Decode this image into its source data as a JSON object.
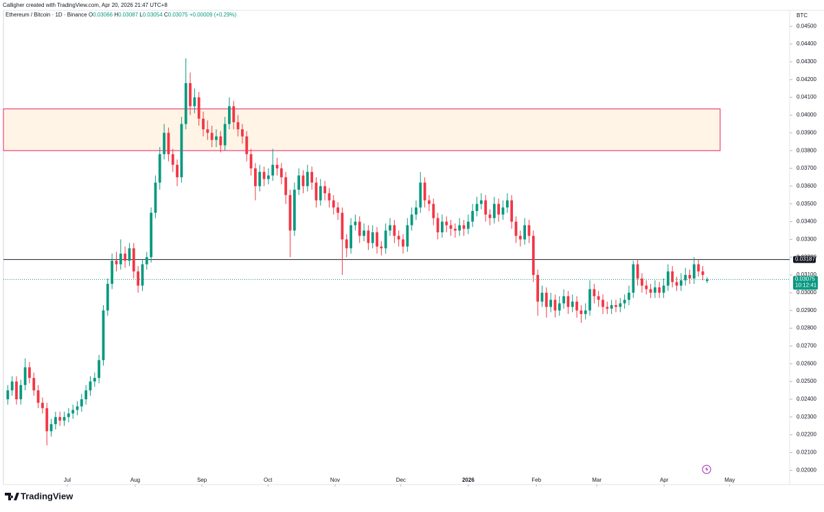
{
  "header": "Calligher created with TradingView.com, Apr 20, 2026 21:47 UTC+8",
  "chart_data": {
    "type": "candlestick",
    "symbol": "Ethereum / Bitcoin · 1D · Binance",
    "ohlc_labels": [
      "O",
      "H",
      "L",
      "C"
    ],
    "change": "+0.00009 (+0.29%)",
    "currency": "BTC",
    "up_color": "#089981",
    "down_color": "#f23645",
    "grid": false,
    "xlim": [
      -1,
      180
    ],
    "ylim": [
      0.0192,
      0.0459
    ],
    "xticks": [
      {
        "value": 13.7,
        "label": "Jul"
      },
      {
        "value": 29.35,
        "label": "Aug"
      },
      {
        "value": 44.7,
        "label": "Sep"
      },
      {
        "value": 59.9,
        "label": "Oct"
      },
      {
        "value": 75.35,
        "label": "Nov"
      },
      {
        "value": 90.5,
        "label": "Dec"
      },
      {
        "value": 106,
        "label": "2026"
      },
      {
        "value": 121.7,
        "label": "Feb"
      },
      {
        "value": 135.6,
        "label": "Mar"
      },
      {
        "value": 151.1,
        "label": "Apr"
      },
      {
        "value": 166.2,
        "label": "May"
      }
    ],
    "yticks": [
      {
        "value": 0.02,
        "label": "0.02000"
      },
      {
        "value": 0.021,
        "label": "0.02100"
      },
      {
        "value": 0.022,
        "label": "0.02200"
      },
      {
        "value": 0.023,
        "label": "0.02300"
      },
      {
        "value": 0.024,
        "label": "0.02400"
      },
      {
        "value": 0.025,
        "label": "0.02500"
      },
      {
        "value": 0.026,
        "label": "0.02600"
      },
      {
        "value": 0.027,
        "label": "0.02700"
      },
      {
        "value": 0.028,
        "label": "0.02800"
      },
      {
        "value": 0.029,
        "label": "0.02900"
      },
      {
        "value": 0.03,
        "label": "0.03000"
      },
      {
        "value": 0.031,
        "label": "0.03100"
      },
      {
        "value": 0.032,
        "label": "0.03200"
      },
      {
        "value": 0.033,
        "label": "0.03300"
      },
      {
        "value": 0.034,
        "label": "0.03400"
      },
      {
        "value": 0.035,
        "label": "0.03500"
      },
      {
        "value": 0.036,
        "label": "0.03600"
      },
      {
        "value": 0.037,
        "label": "0.03700"
      },
      {
        "value": 0.038,
        "label": "0.03800"
      },
      {
        "value": 0.039,
        "label": "0.03900"
      },
      {
        "value": 0.04,
        "label": "0.04000"
      },
      {
        "value": 0.041,
        "label": "0.04100"
      },
      {
        "value": 0.042,
        "label": "0.04200"
      },
      {
        "value": 0.043,
        "label": "0.04300"
      },
      {
        "value": 0.044,
        "label": "0.04400"
      },
      {
        "value": 0.045,
        "label": "0.04500"
      }
    ],
    "zone": {
      "x": [
        -1,
        164
      ],
      "y": [
        0.038,
        0.04035
      ],
      "color": "#e91e63"
    },
    "hline": {
      "value": 0.03187,
      "color": "#131722"
    },
    "countdown": "10:12:41",
    "candles": [
      [
        0.024,
        0.0248,
        0.0237,
        0.0245
      ],
      [
        0.0245,
        0.0253,
        0.0242,
        0.025
      ],
      [
        0.025,
        0.0253,
        0.0237,
        0.024
      ],
      [
        0.024,
        0.0251,
        0.0237,
        0.0248
      ],
      [
        0.0248,
        0.0263,
        0.0245,
        0.0258
      ],
      [
        0.0258,
        0.0261,
        0.0249,
        0.0252
      ],
      [
        0.0252,
        0.0255,
        0.0242,
        0.0245
      ],
      [
        0.0245,
        0.0248,
        0.0235,
        0.0238
      ],
      [
        0.0238,
        0.0241,
        0.0232,
        0.0235
      ],
      [
        0.0235,
        0.0238,
        0.0214,
        0.0222
      ],
      [
        0.0222,
        0.0229,
        0.0219,
        0.0226
      ],
      [
        0.0226,
        0.0233,
        0.0223,
        0.023
      ],
      [
        0.023,
        0.0233,
        0.0225,
        0.0228
      ],
      [
        0.0228,
        0.0233,
        0.0225,
        0.023
      ],
      [
        0.023,
        0.0235,
        0.0227,
        0.0232
      ],
      [
        0.0232,
        0.0237,
        0.0229,
        0.0234
      ],
      [
        0.0234,
        0.0239,
        0.0231,
        0.0236
      ],
      [
        0.0236,
        0.0243,
        0.0233,
        0.024
      ],
      [
        0.024,
        0.0248,
        0.0237,
        0.0245
      ],
      [
        0.0245,
        0.0253,
        0.0242,
        0.025
      ],
      [
        0.025,
        0.0255,
        0.0247,
        0.0252
      ],
      [
        0.0252,
        0.0265,
        0.0249,
        0.0262
      ],
      [
        0.0262,
        0.0293,
        0.0259,
        0.029
      ],
      [
        0.029,
        0.0308,
        0.0287,
        0.0305
      ],
      [
        0.0305,
        0.0322,
        0.0302,
        0.0318
      ],
      [
        0.0318,
        0.0323,
        0.0312,
        0.0316
      ],
      [
        0.0316,
        0.033,
        0.0313,
        0.0322
      ],
      [
        0.0322,
        0.0326,
        0.0314,
        0.0318
      ],
      [
        0.0318,
        0.0328,
        0.0315,
        0.0325
      ],
      [
        0.0325,
        0.0328,
        0.0308,
        0.0312
      ],
      [
        0.0312,
        0.0315,
        0.03,
        0.0304
      ],
      [
        0.0304,
        0.0319,
        0.0301,
        0.0316
      ],
      [
        0.0316,
        0.0323,
        0.0313,
        0.032
      ],
      [
        0.032,
        0.0348,
        0.0317,
        0.0345
      ],
      [
        0.0345,
        0.0366,
        0.0342,
        0.0362
      ],
      [
        0.0362,
        0.0382,
        0.0358,
        0.0378
      ],
      [
        0.0378,
        0.0395,
        0.0375,
        0.039
      ],
      [
        0.039,
        0.0393,
        0.0374,
        0.0378
      ],
      [
        0.0378,
        0.0381,
        0.0368,
        0.0372
      ],
      [
        0.0372,
        0.0375,
        0.036,
        0.0365
      ],
      [
        0.0365,
        0.0399,
        0.0362,
        0.0395
      ],
      [
        0.0395,
        0.0432,
        0.0392,
        0.0418
      ],
      [
        0.0418,
        0.0424,
        0.04,
        0.0405
      ],
      [
        0.0405,
        0.0415,
        0.0401,
        0.041
      ],
      [
        0.041,
        0.0413,
        0.0394,
        0.0398
      ],
      [
        0.0398,
        0.0402,
        0.0388,
        0.0392
      ],
      [
        0.0392,
        0.0397,
        0.0386,
        0.039
      ],
      [
        0.039,
        0.0394,
        0.0382,
        0.0386
      ],
      [
        0.0386,
        0.0392,
        0.0382,
        0.0388
      ],
      [
        0.0388,
        0.0391,
        0.0379,
        0.0383
      ],
      [
        0.0383,
        0.0399,
        0.038,
        0.0395
      ],
      [
        0.0395,
        0.041,
        0.0392,
        0.0405
      ],
      [
        0.0405,
        0.0408,
        0.0392,
        0.0396
      ],
      [
        0.0396,
        0.04,
        0.0388,
        0.0392
      ],
      [
        0.0392,
        0.0395,
        0.0384,
        0.0388
      ],
      [
        0.0388,
        0.0391,
        0.0374,
        0.0378
      ],
      [
        0.0378,
        0.0381,
        0.0366,
        0.037
      ],
      [
        0.037,
        0.0373,
        0.0352,
        0.036
      ],
      [
        0.036,
        0.0372,
        0.0357,
        0.0368
      ],
      [
        0.0368,
        0.0371,
        0.036,
        0.0364
      ],
      [
        0.0364,
        0.037,
        0.0361,
        0.0366
      ],
      [
        0.0366,
        0.0381,
        0.0363,
        0.0372
      ],
      [
        0.0372,
        0.0376,
        0.0366,
        0.037
      ],
      [
        0.037,
        0.0373,
        0.0361,
        0.0365
      ],
      [
        0.0365,
        0.0368,
        0.035,
        0.0355
      ],
      [
        0.0355,
        0.0358,
        0.032,
        0.0335
      ],
      [
        0.0335,
        0.0362,
        0.0332,
        0.0358
      ],
      [
        0.0358,
        0.037,
        0.0355,
        0.0366
      ],
      [
        0.0366,
        0.0369,
        0.0356,
        0.036
      ],
      [
        0.036,
        0.0372,
        0.0357,
        0.0368
      ],
      [
        0.0368,
        0.0371,
        0.0358,
        0.0362
      ],
      [
        0.0362,
        0.0365,
        0.0348,
        0.0352
      ],
      [
        0.0352,
        0.0364,
        0.0349,
        0.036
      ],
      [
        0.036,
        0.0363,
        0.0352,
        0.0356
      ],
      [
        0.0356,
        0.0359,
        0.0348,
        0.0352
      ],
      [
        0.0352,
        0.0355,
        0.0344,
        0.0348
      ],
      [
        0.0348,
        0.0351,
        0.0341,
        0.0345
      ],
      [
        0.0345,
        0.0348,
        0.031,
        0.033
      ],
      [
        0.033,
        0.0333,
        0.032,
        0.0325
      ],
      [
        0.0325,
        0.0342,
        0.0322,
        0.0338
      ],
      [
        0.0338,
        0.0344,
        0.0335,
        0.034
      ],
      [
        0.034,
        0.0343,
        0.0328,
        0.0332
      ],
      [
        0.0332,
        0.0339,
        0.0329,
        0.0335
      ],
      [
        0.0335,
        0.0338,
        0.0324,
        0.0328
      ],
      [
        0.0328,
        0.0338,
        0.0325,
        0.0334
      ],
      [
        0.0334,
        0.0337,
        0.0322,
        0.0326
      ],
      [
        0.0326,
        0.0329,
        0.0321,
        0.0325
      ],
      [
        0.0325,
        0.0339,
        0.0322,
        0.0335
      ],
      [
        0.0335,
        0.0342,
        0.0332,
        0.0338
      ],
      [
        0.0338,
        0.0341,
        0.0328,
        0.0332
      ],
      [
        0.0332,
        0.0335,
        0.0326,
        0.033
      ],
      [
        0.033,
        0.0333,
        0.0322,
        0.0326
      ],
      [
        0.0326,
        0.0342,
        0.0323,
        0.0338
      ],
      [
        0.0338,
        0.0348,
        0.0335,
        0.0344
      ],
      [
        0.0344,
        0.0352,
        0.0341,
        0.0348
      ],
      [
        0.0348,
        0.0368,
        0.0345,
        0.0362
      ],
      [
        0.0362,
        0.0365,
        0.0348,
        0.0352
      ],
      [
        0.0352,
        0.0355,
        0.0346,
        0.035
      ],
      [
        0.035,
        0.0353,
        0.0338,
        0.0342
      ],
      [
        0.0342,
        0.0345,
        0.033,
        0.0334
      ],
      [
        0.0334,
        0.0344,
        0.0331,
        0.034
      ],
      [
        0.034,
        0.0343,
        0.0334,
        0.0338
      ],
      [
        0.0338,
        0.0341,
        0.0332,
        0.0336
      ],
      [
        0.0336,
        0.0339,
        0.0331,
        0.0335
      ],
      [
        0.0335,
        0.0342,
        0.0332,
        0.0338
      ],
      [
        0.0338,
        0.0341,
        0.0332,
        0.0336
      ],
      [
        0.0336,
        0.0344,
        0.0333,
        0.034
      ],
      [
        0.034,
        0.035,
        0.0337,
        0.0346
      ],
      [
        0.0346,
        0.0354,
        0.0343,
        0.035
      ],
      [
        0.035,
        0.0356,
        0.0347,
        0.0352
      ],
      [
        0.0352,
        0.0355,
        0.034,
        0.0344
      ],
      [
        0.0344,
        0.0347,
        0.0338,
        0.0342
      ],
      [
        0.0342,
        0.0354,
        0.0339,
        0.035
      ],
      [
        0.035,
        0.0353,
        0.034,
        0.0344
      ],
      [
        0.0344,
        0.0352,
        0.0341,
        0.0348
      ],
      [
        0.0348,
        0.0356,
        0.0345,
        0.0352
      ],
      [
        0.0352,
        0.0355,
        0.0336,
        0.034
      ],
      [
        0.034,
        0.0343,
        0.0328,
        0.0332
      ],
      [
        0.0332,
        0.0335,
        0.0326,
        0.033
      ],
      [
        0.033,
        0.0342,
        0.0327,
        0.0338
      ],
      [
        0.0338,
        0.0341,
        0.0328,
        0.0332
      ],
      [
        0.0332,
        0.0335,
        0.0306,
        0.031
      ],
      [
        0.031,
        0.0313,
        0.0287,
        0.0295
      ],
      [
        0.0295,
        0.0304,
        0.0292,
        0.03
      ],
      [
        0.03,
        0.0303,
        0.0286,
        0.0292
      ],
      [
        0.0292,
        0.03,
        0.0289,
        0.0296
      ],
      [
        0.0296,
        0.0299,
        0.0286,
        0.029
      ],
      [
        0.029,
        0.0298,
        0.0287,
        0.0294
      ],
      [
        0.0294,
        0.0302,
        0.0291,
        0.0298
      ],
      [
        0.0298,
        0.0301,
        0.0288,
        0.0292
      ],
      [
        0.0292,
        0.0299,
        0.0289,
        0.0295
      ],
      [
        0.0295,
        0.0298,
        0.0286,
        0.029
      ],
      [
        0.029,
        0.0293,
        0.0283,
        0.0288
      ],
      [
        0.0288,
        0.0294,
        0.0285,
        0.029
      ],
      [
        0.029,
        0.0307,
        0.0287,
        0.0302
      ],
      [
        0.0302,
        0.0305,
        0.0294,
        0.0298
      ],
      [
        0.0298,
        0.0301,
        0.0292,
        0.0296
      ],
      [
        0.0296,
        0.0299,
        0.0288,
        0.0292
      ],
      [
        0.0292,
        0.0295,
        0.0288,
        0.0291
      ],
      [
        0.0291,
        0.0296,
        0.0288,
        0.0293
      ],
      [
        0.0293,
        0.0296,
        0.0289,
        0.0292
      ],
      [
        0.0292,
        0.0297,
        0.0289,
        0.0294
      ],
      [
        0.0294,
        0.0299,
        0.0291,
        0.0296
      ],
      [
        0.0296,
        0.0304,
        0.0293,
        0.03
      ],
      [
        0.03,
        0.0318,
        0.0297,
        0.0316
      ],
      [
        0.0316,
        0.0319,
        0.0304,
        0.0308
      ],
      [
        0.0308,
        0.0311,
        0.03,
        0.0304
      ],
      [
        0.0304,
        0.0307,
        0.0299,
        0.0302
      ],
      [
        0.0302,
        0.0305,
        0.0297,
        0.03
      ],
      [
        0.03,
        0.0307,
        0.0297,
        0.0303
      ],
      [
        0.0303,
        0.0306,
        0.0297,
        0.03
      ],
      [
        0.03,
        0.0308,
        0.0297,
        0.0304
      ],
      [
        0.0304,
        0.0316,
        0.0301,
        0.0312
      ],
      [
        0.0312,
        0.0315,
        0.0303,
        0.0306
      ],
      [
        0.0306,
        0.0309,
        0.0301,
        0.0304
      ],
      [
        0.0304,
        0.0311,
        0.0301,
        0.0307
      ],
      [
        0.0307,
        0.0314,
        0.0304,
        0.031
      ],
      [
        0.031,
        0.0313,
        0.0305,
        0.0308
      ],
      [
        0.0308,
        0.032,
        0.0305,
        0.0316
      ],
      [
        0.0316,
        0.0319,
        0.0309,
        0.0312
      ],
      [
        0.0312,
        0.0315,
        0.0307,
        0.031
      ],
      [
        0.03066,
        0.03087,
        0.03054,
        0.03075
      ]
    ]
  },
  "footer": {
    "brand": "TradingView"
  }
}
